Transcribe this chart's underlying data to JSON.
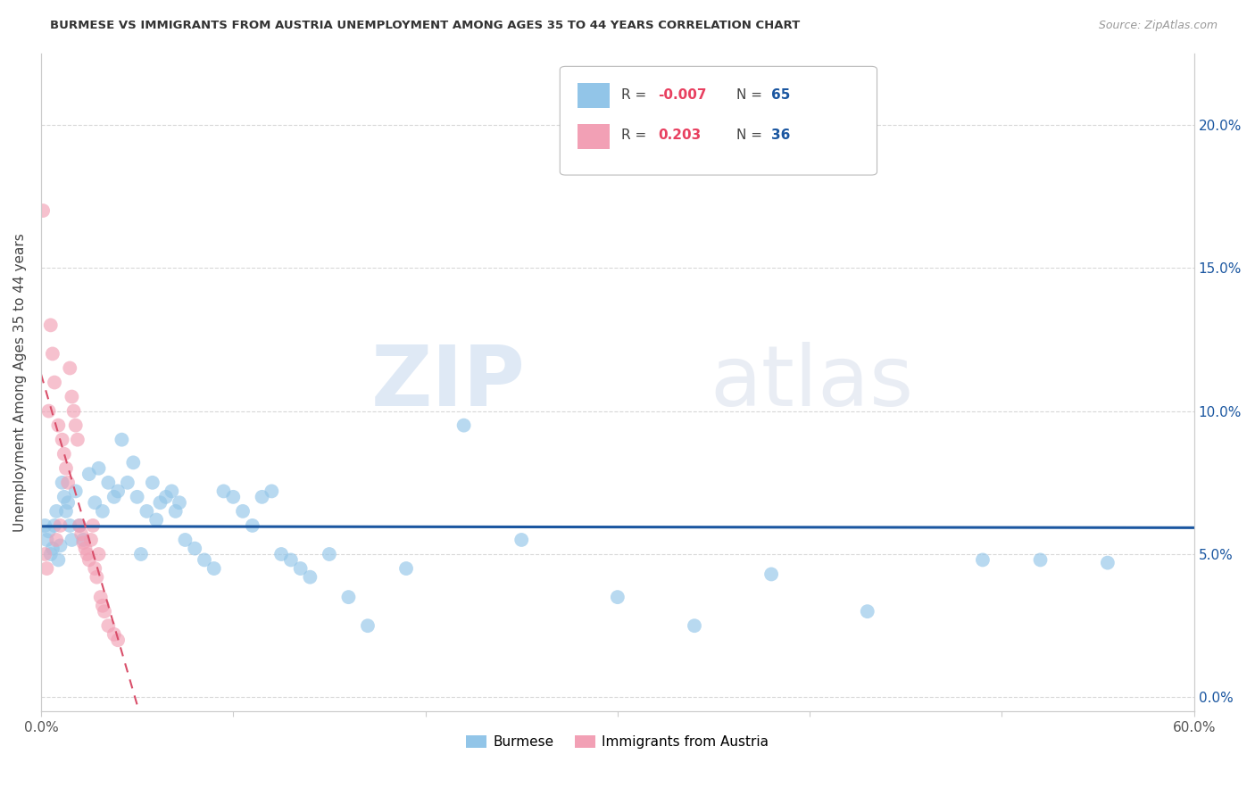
{
  "title": "BURMESE VS IMMIGRANTS FROM AUSTRIA UNEMPLOYMENT AMONG AGES 35 TO 44 YEARS CORRELATION CHART",
  "source": "Source: ZipAtlas.com",
  "ylabel": "Unemployment Among Ages 35 to 44 years",
  "xmin": 0.0,
  "xmax": 0.6,
  "ymin": -0.005,
  "ymax": 0.225,
  "xticks": [
    0.0,
    0.1,
    0.2,
    0.3,
    0.4,
    0.5,
    0.6
  ],
  "xtick_labels": [
    "0.0%",
    "",
    "",
    "",
    "",
    "",
    "60.0%"
  ],
  "yticks": [
    0.0,
    0.05,
    0.1,
    0.15,
    0.2
  ],
  "ytick_labels_right": [
    "0.0%",
    "5.0%",
    "10.0%",
    "15.0%",
    "20.0%"
  ],
  "legend_r1": "-0.007",
  "legend_n1": "65",
  "legend_r2": "0.203",
  "legend_n2": "36",
  "color_burmese": "#92C5E8",
  "color_austria": "#F2A0B5",
  "color_line_burmese": "#1A56A0",
  "color_line_austria": "#D94F6A",
  "watermark_zip": "ZIP",
  "watermark_atlas": "atlas",
  "burmese_x": [
    0.002,
    0.003,
    0.004,
    0.005,
    0.006,
    0.007,
    0.008,
    0.009,
    0.01,
    0.011,
    0.012,
    0.013,
    0.014,
    0.015,
    0.016,
    0.018,
    0.02,
    0.022,
    0.025,
    0.028,
    0.03,
    0.032,
    0.035,
    0.038,
    0.04,
    0.042,
    0.045,
    0.048,
    0.05,
    0.052,
    0.055,
    0.058,
    0.06,
    0.062,
    0.065,
    0.068,
    0.07,
    0.072,
    0.075,
    0.08,
    0.085,
    0.09,
    0.095,
    0.1,
    0.105,
    0.11,
    0.115,
    0.12,
    0.125,
    0.13,
    0.135,
    0.14,
    0.15,
    0.16,
    0.17,
    0.19,
    0.22,
    0.25,
    0.3,
    0.34,
    0.38,
    0.43,
    0.49,
    0.52,
    0.555
  ],
  "burmese_y": [
    0.06,
    0.055,
    0.058,
    0.05,
    0.052,
    0.06,
    0.065,
    0.048,
    0.053,
    0.075,
    0.07,
    0.065,
    0.068,
    0.06,
    0.055,
    0.072,
    0.06,
    0.055,
    0.078,
    0.068,
    0.08,
    0.065,
    0.075,
    0.07,
    0.072,
    0.09,
    0.075,
    0.082,
    0.07,
    0.05,
    0.065,
    0.075,
    0.062,
    0.068,
    0.07,
    0.072,
    0.065,
    0.068,
    0.055,
    0.052,
    0.048,
    0.045,
    0.072,
    0.07,
    0.065,
    0.06,
    0.07,
    0.072,
    0.05,
    0.048,
    0.045,
    0.042,
    0.05,
    0.035,
    0.025,
    0.045,
    0.095,
    0.055,
    0.035,
    0.025,
    0.043,
    0.03,
    0.048,
    0.048,
    0.047
  ],
  "austria_x": [
    0.001,
    0.002,
    0.003,
    0.004,
    0.005,
    0.006,
    0.007,
    0.008,
    0.009,
    0.01,
    0.011,
    0.012,
    0.013,
    0.014,
    0.015,
    0.016,
    0.017,
    0.018,
    0.019,
    0.02,
    0.021,
    0.022,
    0.023,
    0.024,
    0.025,
    0.026,
    0.027,
    0.028,
    0.029,
    0.03,
    0.031,
    0.032,
    0.033,
    0.035,
    0.038,
    0.04
  ],
  "austria_y": [
    0.17,
    0.05,
    0.045,
    0.1,
    0.13,
    0.12,
    0.11,
    0.055,
    0.095,
    0.06,
    0.09,
    0.085,
    0.08,
    0.075,
    0.115,
    0.105,
    0.1,
    0.095,
    0.09,
    0.06,
    0.057,
    0.054,
    0.052,
    0.05,
    0.048,
    0.055,
    0.06,
    0.045,
    0.042,
    0.05,
    0.035,
    0.032,
    0.03,
    0.025,
    0.022,
    0.02
  ]
}
